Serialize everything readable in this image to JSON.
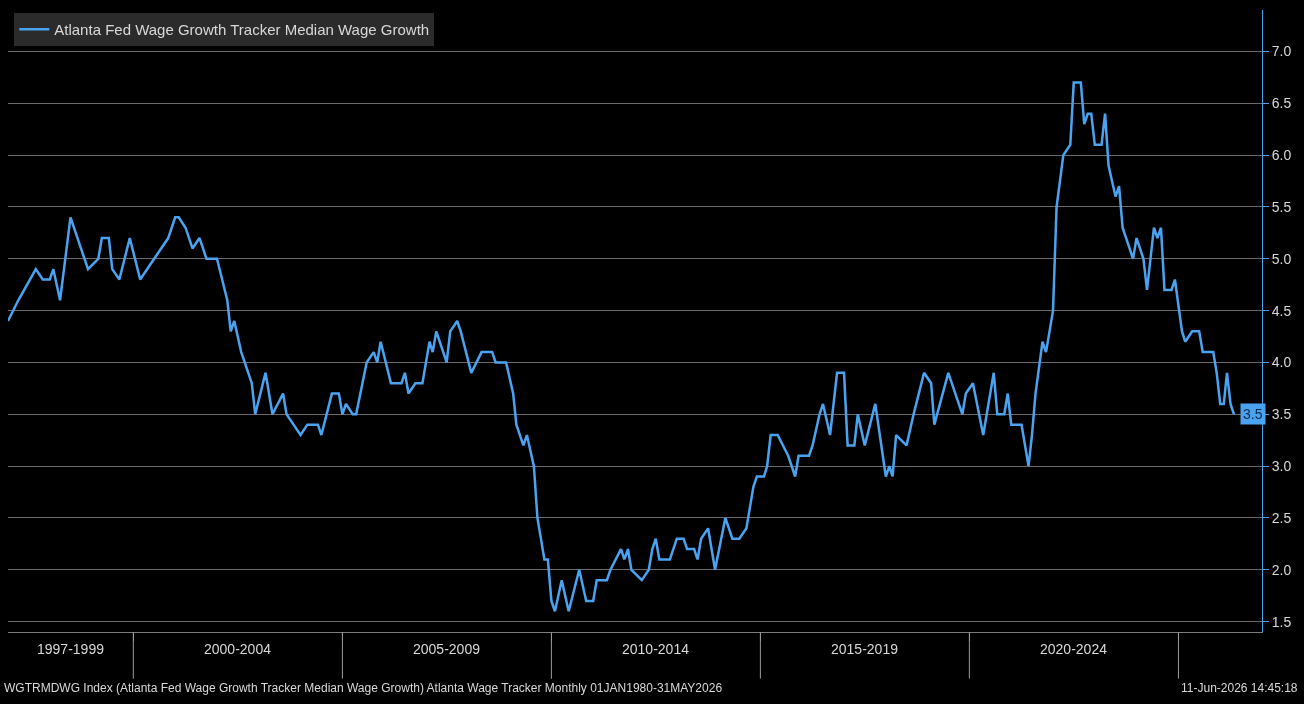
{
  "chart_data": {
    "type": "line",
    "legend": "top left",
    "grid": "y",
    "line_style": "solid",
    "marker": "none",
    "x": [
      "1997-01",
      "1997-04",
      "1997-09",
      "1997-11",
      "1998-01",
      "1998-02",
      "1998-04",
      "1998-07",
      "1998-12",
      "1999-03",
      "1999-04",
      "1999-06",
      "1999-07",
      "1999-09",
      "1999-12",
      "2000-03",
      "2000-07",
      "2000-11",
      "2001-01",
      "2001-02",
      "2001-04",
      "2001-06",
      "2001-08",
      "2001-09",
      "2001-10",
      "2002-01",
      "2002-04",
      "2002-05",
      "2002-06",
      "2002-08",
      "2002-11",
      "2002-12",
      "2003-03",
      "2003-05",
      "2003-08",
      "2003-09",
      "2003-11",
      "2004-01",
      "2004-03",
      "2004-06",
      "2004-07",
      "2004-10",
      "2004-12",
      "2005-01",
      "2005-02",
      "2005-04",
      "2005-05",
      "2005-08",
      "2005-10",
      "2005-11",
      "2005-12",
      "2006-03",
      "2006-06",
      "2006-07",
      "2006-08",
      "2006-10",
      "2006-12",
      "2007-02",
      "2007-03",
      "2007-04",
      "2007-06",
      "2007-07",
      "2007-08",
      "2007-10",
      "2007-11",
      "2008-02",
      "2008-05",
      "2008-08",
      "2008-09",
      "2008-12",
      "2009-02",
      "2009-03",
      "2009-05",
      "2009-06",
      "2009-08",
      "2009-09",
      "2009-11",
      "2009-12",
      "2010-01",
      "2010-02",
      "2010-04",
      "2010-06",
      "2010-09",
      "2010-11",
      "2011-01",
      "2011-02",
      "2011-05",
      "2011-06",
      "2011-09",
      "2011-10",
      "2011-11",
      "2011-12",
      "2012-03",
      "2012-05",
      "2012-06",
      "2012-07",
      "2012-08",
      "2012-11",
      "2013-01",
      "2013-03",
      "2013-04",
      "2013-06",
      "2013-07",
      "2013-08",
      "2013-10",
      "2013-12",
      "2014-03",
      "2014-05",
      "2014-07",
      "2014-09",
      "2014-11",
      "2014-12",
      "2015-02",
      "2015-03",
      "2015-04",
      "2015-06",
      "2015-09",
      "2015-11",
      "2015-12",
      "2016-03",
      "2016-04",
      "2016-06",
      "2016-07",
      "2016-09",
      "2016-11",
      "2017-01",
      "2017-02",
      "2017-04",
      "2017-05",
      "2017-07",
      "2017-10",
      "2018-01",
      "2018-02",
      "2018-03",
      "2018-04",
      "2018-07",
      "2018-09",
      "2018-12",
      "2019-02",
      "2019-03",
      "2019-07",
      "2019-11",
      "2019-12",
      "2020-02",
      "2020-05",
      "2020-08",
      "2020-09",
      "2020-11",
      "2020-12",
      "2021-01",
      "2021-04",
      "2021-06",
      "2021-07",
      "2021-08",
      "2021-10",
      "2021-11",
      "2022-01",
      "2022-02",
      "2022-04",
      "2022-06",
      "2022-07",
      "2022-09",
      "2022-10",
      "2022-11",
      "2022-12",
      "2023-01",
      "2023-03",
      "2023-04",
      "2023-05",
      "2023-07",
      "2023-08",
      "2023-09",
      "2023-11",
      "2023-12",
      "2024-01",
      "2024-03",
      "2024-04",
      "2024-06",
      "2024-07",
      "2024-08",
      "2024-09",
      "2024-11",
      "2024-12",
      "2025-02",
      "2025-03",
      "2025-05",
      "2025-07",
      "2025-08",
      "2025-10",
      "2025-11",
      "2025-12",
      "2026-01",
      "2026-02",
      "2026-03",
      "2026-04",
      "2026-05"
    ],
    "series": [
      {
        "name": "Atlanta Fed Wage Growth Tracker Median Wage Growth",
        "color": "#4aa3f0",
        "values": [
          4.4,
          4.6,
          4.9,
          4.8,
          4.8,
          4.9,
          4.6,
          5.4,
          4.9,
          5.0,
          5.2,
          5.2,
          4.9,
          4.8,
          5.2,
          4.8,
          5.0,
          5.2,
          5.4,
          5.4,
          5.3,
          5.1,
          5.2,
          5.1,
          5.0,
          5.0,
          4.6,
          4.3,
          4.4,
          4.1,
          3.8,
          3.5,
          3.9,
          3.5,
          3.7,
          3.5,
          3.4,
          3.3,
          3.4,
          3.4,
          3.3,
          3.7,
          3.7,
          3.5,
          3.6,
          3.5,
          3.5,
          4.0,
          4.1,
          4.0,
          4.2,
          3.8,
          3.8,
          3.9,
          3.7,
          3.8,
          3.8,
          4.2,
          4.1,
          4.3,
          4.1,
          4.0,
          4.3,
          4.4,
          4.3,
          3.9,
          4.1,
          4.1,
          4.0,
          4.0,
          3.7,
          3.4,
          3.2,
          3.3,
          3.0,
          2.5,
          2.1,
          2.1,
          1.7,
          1.6,
          1.9,
          1.6,
          2.0,
          1.7,
          1.7,
          1.9,
          1.9,
          2.0,
          2.2,
          2.1,
          2.2,
          2.0,
          1.9,
          2.0,
          2.2,
          2.3,
          2.1,
          2.1,
          2.3,
          2.3,
          2.2,
          2.2,
          2.1,
          2.3,
          2.4,
          2.0,
          2.5,
          2.3,
          2.3,
          2.4,
          2.8,
          2.9,
          2.9,
          3.0,
          3.3,
          3.3,
          3.1,
          2.9,
          3.1,
          3.1,
          3.2,
          3.5,
          3.6,
          3.3,
          3.9,
          3.9,
          3.2,
          3.2,
          3.5,
          3.2,
          3.6,
          2.9,
          3.0,
          2.9,
          3.3,
          3.2,
          3.5,
          3.9,
          3.8,
          3.4,
          3.9,
          3.5,
          3.7,
          3.8,
          3.3,
          3.9,
          3.5,
          3.5,
          3.7,
          3.4,
          3.4,
          3.0,
          3.3,
          3.7,
          4.2,
          4.1,
          4.5,
          5.5,
          6.0,
          6.1,
          6.7,
          6.7,
          6.3,
          6.4,
          6.4,
          6.1,
          6.1,
          6.4,
          5.9,
          5.6,
          5.7,
          5.3,
          5.1,
          5.0,
          5.2,
          5.0,
          4.7,
          5.3,
          5.2,
          5.3,
          4.7,
          4.7,
          4.8,
          4.3,
          4.2,
          4.3,
          4.3,
          4.1,
          4.1,
          4.1,
          3.9,
          3.6,
          3.6,
          3.9,
          3.6,
          3.5
        ]
      }
    ],
    "xlim": [
      "1997-01",
      "2027-01"
    ],
    "xticks": [
      {
        "value": "1998-07",
        "label": "1997-1999"
      },
      {
        "value": "2000-01",
        "label": null
      },
      {
        "value": "2002-07",
        "label": "2000-2004"
      },
      {
        "value": "2005-01",
        "label": null
      },
      {
        "value": "2007-07",
        "label": "2005-2009"
      },
      {
        "value": "2010-01",
        "label": null
      },
      {
        "value": "2012-07",
        "label": "2010-2014"
      },
      {
        "value": "2015-01",
        "label": null
      },
      {
        "value": "2017-07",
        "label": "2015-2019"
      },
      {
        "value": "2020-01",
        "label": null
      },
      {
        "value": "2022-07",
        "label": "2020-2024"
      },
      {
        "value": "2025-01",
        "label": null
      }
    ],
    "ylim": [
      1.4,
      7.4
    ],
    "yticks": [
      {
        "value": 1.5,
        "label": "1.5"
      },
      {
        "value": 2,
        "label": "2.0"
      },
      {
        "value": 2.5,
        "label": "2.5"
      },
      {
        "value": 3,
        "label": "3.0"
      },
      {
        "value": 3.5,
        "label": "3.5"
      },
      {
        "value": 4,
        "label": "4.0"
      },
      {
        "value": 4.5,
        "label": "4.5"
      },
      {
        "value": 5,
        "label": "5.0"
      },
      {
        "value": 5.5,
        "label": "5.5"
      },
      {
        "value": 6,
        "label": "6.0"
      },
      {
        "value": 6.5,
        "label": "6.5"
      },
      {
        "value": 7,
        "label": "7.0"
      }
    ],
    "annotations": [
      {
        "text": "3.5",
        "x": "2026-05",
        "y": 3.5
      },
      "WGTRMDWG Index (Atlanta Fed Wage Growth Tracker Median Wage Growth) Atlanta Wage Tracker Monthly 01JAN1980-31MAY2026",
      "11-Jun-2026 14:45:18"
    ]
  }
}
